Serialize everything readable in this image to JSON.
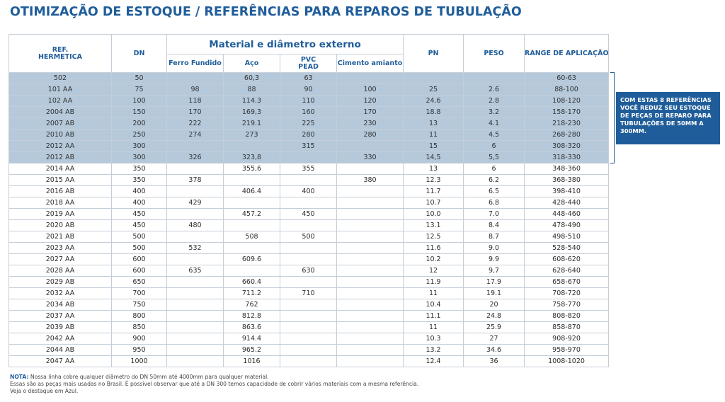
{
  "title": "OTIMIZAÇÃO DE ESTOQUE / REFERÊNCIAS PARA REPAROS DE TUBULAÇÃO",
  "table": {
    "headers": {
      "ref": "REF. HERMETICA",
      "dn": "DN",
      "material_group": "Material e diâmetro externo",
      "ferro": "Ferro Fundido",
      "aco": "Aço",
      "pvc": "PVC PEAD",
      "cimento": "Cimento amianto",
      "pn": "PN",
      "peso": "PESO",
      "range": "RANGE DE APLICAÇÃO"
    },
    "rows": [
      [
        "502",
        "50",
        "",
        "60,3",
        "63",
        "",
        "",
        "",
        "60-63"
      ],
      [
        "101 AA",
        "75",
        "98",
        "88",
        "90",
        "100",
        "25",
        "2.6",
        "88-100"
      ],
      [
        "102 AA",
        "100",
        "118",
        "114.3",
        "110",
        "120",
        "24.6",
        "2.8",
        "108-120"
      ],
      [
        "2004 AB",
        "150",
        "170",
        "169,3",
        "160",
        "170",
        "18.8",
        "3.2",
        "158-170"
      ],
      [
        "2007 AB",
        "200",
        "222",
        "219.1",
        "225",
        "230",
        "13",
        "4.1",
        "218-230"
      ],
      [
        "2010 AB",
        "250",
        "274",
        "273",
        "280",
        "280",
        "11",
        "4.5",
        "268-280"
      ],
      [
        "2012 AA",
        "300",
        "",
        "",
        "315",
        "",
        "15",
        "6",
        "308-320"
      ],
      [
        "2012 AB",
        "300",
        "326",
        "323,8",
        "",
        "330",
        "14,5",
        "5,5",
        "318-330"
      ],
      [
        "2014 AA",
        "350",
        "",
        "355,6",
        "355",
        "",
        "13",
        "6",
        "348-360"
      ],
      [
        "2015 AA",
        "350",
        "378",
        "",
        "",
        "380",
        "12.3",
        "6.2",
        "368-380"
      ],
      [
        "2016 AB",
        "400",
        "",
        "406.4",
        "400",
        "",
        "11.7",
        "6.5",
        "398-410"
      ],
      [
        "2018 AA",
        "400",
        "429",
        "",
        "",
        "",
        "10.7",
        "6.8",
        "428-440"
      ],
      [
        "2019 AA",
        "450",
        "",
        "457.2",
        "450",
        "",
        "10.0",
        "7.0",
        "448-460"
      ],
      [
        "2020 AB",
        "450",
        "480",
        "",
        "",
        "",
        "13.1",
        "8.4",
        "478-490"
      ],
      [
        "2021 AB",
        "500",
        "",
        "508",
        "500",
        "",
        "12.5",
        "8.7",
        "498-510"
      ],
      [
        "2023 AA",
        "500",
        "532",
        "",
        "",
        "",
        "11.6",
        "9.0",
        "528-540"
      ],
      [
        "2027 AA",
        "600",
        "",
        "609.6",
        "",
        "",
        "10.2",
        "9.9",
        "608-620"
      ],
      [
        "2028 AA",
        "600",
        "635",
        "",
        "630",
        "",
        "12",
        "9,7",
        "628-640"
      ],
      [
        "2029 AB",
        "650",
        "",
        "660.4",
        "",
        "",
        "11.9",
        "17.9",
        "658-670"
      ],
      [
        "2032 AA",
        "700",
        "",
        "711.2",
        "710",
        "",
        "11",
        "19.1",
        "708-720"
      ],
      [
        "2034 AB",
        "750",
        "",
        "762",
        "",
        "",
        "10.4",
        "20",
        "758-770"
      ],
      [
        "2037 AA",
        "800",
        "",
        "812.8",
        "",
        "",
        "11.1",
        "24.8",
        "808-820"
      ],
      [
        "2039 AB",
        "850",
        "",
        "863.6",
        "",
        "",
        "11",
        "25.9",
        "858-870"
      ],
      [
        "2042 AA",
        "900",
        "",
        "914.4",
        "",
        "",
        "10.3",
        "27",
        "908-920"
      ],
      [
        "2044 AB",
        "950",
        "",
        "965.2",
        "",
        "",
        "13.2",
        "34.6",
        "958-970"
      ],
      [
        "2047 AA",
        "1000",
        "",
        "1016",
        "",
        "",
        "12.4",
        "36",
        "1008-1020"
      ]
    ],
    "highlighted_rows": 8,
    "highlight_color": "#b5c9db"
  },
  "callout": "COM ESTAS 8 REFERÊNCIAS VOCÊ REDUZ SEU ESTOQUE DE PEÇAS DE REPARO PARA TUBULAÇÕES DE 50MM A 300MM.",
  "note": {
    "label": "NOTA:",
    "line1": "Nossa linha cobre qualquer diâmetro do DN 50mm até 4000mm para qualquer material.",
    "line2": "Essas são as peças mais usadas no Brasil. É possível observar que até a DN 300 temos capacidade de cobrir vários materiais com a mesma referência.",
    "line3": "Veja o destaque em Azul."
  },
  "colors": {
    "brand_blue": "#1f5d9a",
    "grid": "#c5ced8"
  }
}
